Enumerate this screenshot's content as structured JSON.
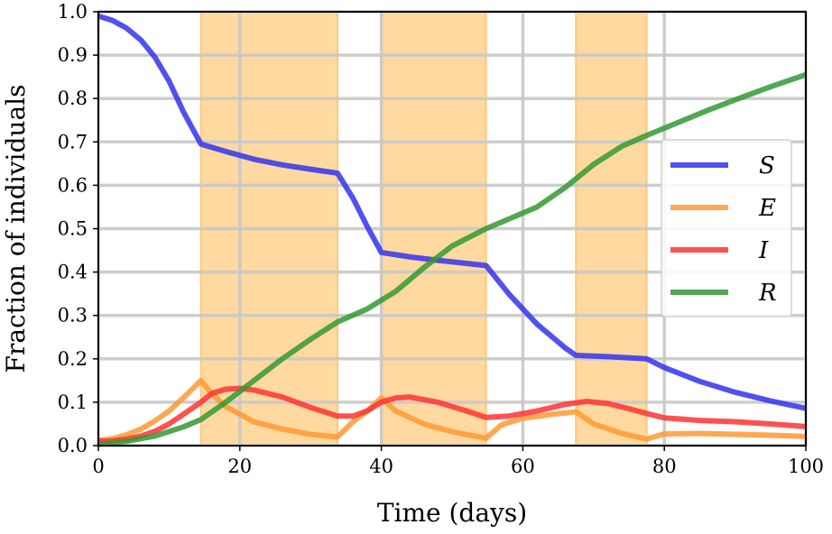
{
  "chart_data": {
    "type": "line",
    "xlabel": "Time (days)",
    "ylabel": "Fraction of individuals",
    "xlim": [
      0,
      100
    ],
    "ylim": [
      0,
      1
    ],
    "xticks": [
      "0",
      "20",
      "40",
      "60",
      "80",
      "100"
    ],
    "yticks": [
      "0.0",
      "0.1",
      "0.2",
      "0.3",
      "0.4",
      "0.5",
      "0.6",
      "0.7",
      "0.8",
      "0.9",
      "1.0"
    ],
    "grid": true,
    "legend_position": "center-right",
    "shaded_intervals": [
      [
        14.5,
        33.8
      ],
      [
        40.0,
        54.8
      ],
      [
        67.5,
        77.5
      ]
    ],
    "shade_color": "#ffd9a0",
    "series": [
      {
        "name": "S",
        "color": "#3333ee",
        "x": [
          0,
          2,
          4,
          6,
          8,
          10,
          12,
          14.5,
          18,
          22,
          26,
          30,
          33.8,
          36,
          38,
          40,
          44,
          48,
          52,
          54.8,
          58,
          62,
          66,
          67.5,
          72,
          77.5,
          80,
          85,
          90,
          95,
          100
        ],
        "y": [
          0.99,
          0.98,
          0.962,
          0.935,
          0.895,
          0.84,
          0.77,
          0.695,
          0.678,
          0.66,
          0.647,
          0.637,
          0.628,
          0.57,
          0.505,
          0.445,
          0.435,
          0.427,
          0.42,
          0.415,
          0.35,
          0.28,
          0.225,
          0.208,
          0.205,
          0.2,
          0.18,
          0.148,
          0.123,
          0.103,
          0.086
        ]
      },
      {
        "name": "E",
        "color": "#ff9933",
        "x": [
          0,
          2,
          4,
          6,
          8,
          10,
          12,
          14.5,
          16,
          18,
          22,
          26,
          30,
          33.8,
          36,
          38,
          40,
          42,
          46,
          50,
          54.8,
          57,
          60,
          64,
          67.5,
          70,
          74,
          77.5,
          80,
          85,
          90,
          95,
          100
        ],
        "y": [
          0.012,
          0.016,
          0.025,
          0.038,
          0.057,
          0.08,
          0.11,
          0.15,
          0.12,
          0.09,
          0.055,
          0.038,
          0.026,
          0.02,
          0.055,
          0.08,
          0.11,
          0.08,
          0.05,
          0.032,
          0.017,
          0.048,
          0.063,
          0.072,
          0.078,
          0.05,
          0.028,
          0.015,
          0.027,
          0.028,
          0.026,
          0.024,
          0.021
        ]
      },
      {
        "name": "I",
        "color": "#ff3333",
        "x": [
          0,
          2,
          4,
          6,
          8,
          10,
          12,
          14.5,
          16,
          18,
          20,
          22,
          26,
          30,
          33.8,
          36,
          38,
          40,
          42,
          44,
          48,
          52,
          54.8,
          58,
          62,
          66,
          69,
          72,
          75,
          77.5,
          80,
          85,
          90,
          95,
          100
        ],
        "y": [
          0.01,
          0.011,
          0.015,
          0.022,
          0.033,
          0.05,
          0.072,
          0.1,
          0.12,
          0.13,
          0.132,
          0.128,
          0.112,
          0.088,
          0.068,
          0.068,
          0.08,
          0.1,
          0.11,
          0.112,
          0.1,
          0.08,
          0.065,
          0.068,
          0.08,
          0.095,
          0.102,
          0.097,
          0.085,
          0.074,
          0.064,
          0.058,
          0.055,
          0.05,
          0.044
        ]
      },
      {
        "name": "R",
        "color": "#339933",
        "x": [
          0,
          4,
          8,
          12,
          14.5,
          18,
          22,
          26,
          30,
          33.8,
          38,
          42,
          46,
          50,
          54.8,
          58,
          62,
          66,
          70,
          74,
          77.5,
          82,
          86,
          90,
          95,
          100
        ],
        "y": [
          0.003,
          0.01,
          0.022,
          0.043,
          0.06,
          0.1,
          0.15,
          0.2,
          0.245,
          0.285,
          0.315,
          0.355,
          0.41,
          0.46,
          0.5,
          0.522,
          0.55,
          0.595,
          0.648,
          0.69,
          0.715,
          0.745,
          0.772,
          0.797,
          0.827,
          0.855
        ]
      }
    ]
  }
}
